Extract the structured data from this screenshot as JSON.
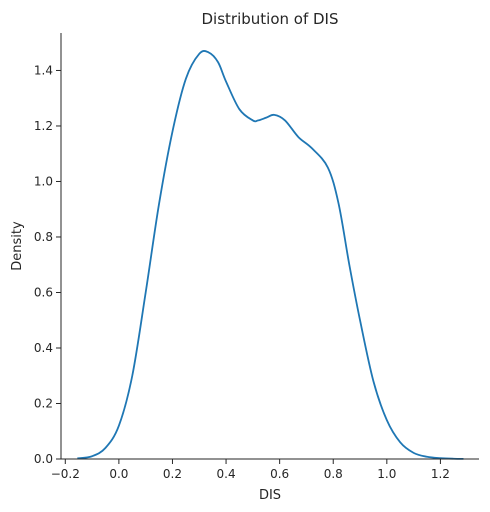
{
  "chart_data": {
    "type": "line",
    "title": "Distribution of DIS",
    "xlabel": "DIS",
    "ylabel": "Density",
    "xlim": [
      -0.216,
      1.344
    ],
    "ylim": [
      0.0,
      1.535
    ],
    "xticks": [
      -0.2,
      0.0,
      0.2,
      0.4,
      0.6,
      0.8,
      1.0,
      1.2
    ],
    "xtick_labels": [
      "−0.2",
      "0.0",
      "0.2",
      "0.4",
      "0.6",
      "0.8",
      "1.0",
      "1.2"
    ],
    "yticks": [
      0.0,
      0.2,
      0.4,
      0.6,
      0.8,
      1.0,
      1.2,
      1.4
    ],
    "ytick_labels": [
      "0.0",
      "0.2",
      "0.4",
      "0.6",
      "0.8",
      "1.0",
      "1.2",
      "1.4"
    ],
    "grid": false,
    "series": [
      {
        "color": "#1f77b4",
        "x": [
          -0.155,
          -0.1,
          -0.05,
          0.0,
          0.05,
          0.1,
          0.15,
          0.2,
          0.25,
          0.3,
          0.335,
          0.37,
          0.4,
          0.45,
          0.5,
          0.52,
          0.55,
          0.58,
          0.62,
          0.67,
          0.72,
          0.78,
          0.82,
          0.86,
          0.9,
          0.95,
          1.0,
          1.05,
          1.1,
          1.15,
          1.2,
          1.25,
          1.286
        ],
        "values": [
          0.002,
          0.01,
          0.04,
          0.12,
          0.3,
          0.6,
          0.92,
          1.18,
          1.37,
          1.46,
          1.465,
          1.43,
          1.36,
          1.26,
          1.22,
          1.22,
          1.23,
          1.24,
          1.22,
          1.16,
          1.12,
          1.05,
          0.92,
          0.7,
          0.5,
          0.28,
          0.14,
          0.06,
          0.022,
          0.008,
          0.003,
          0.001,
          0.0005
        ]
      }
    ]
  }
}
